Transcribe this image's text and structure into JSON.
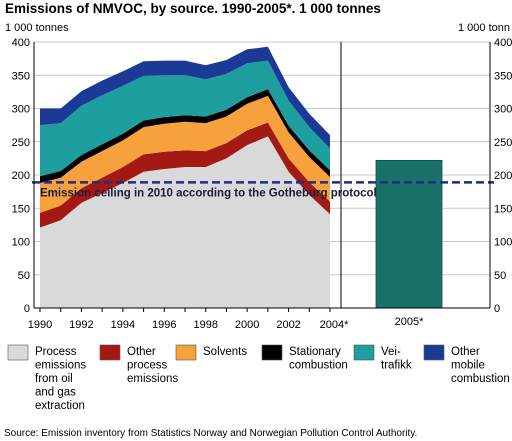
{
  "title": "Emissions of NMVOC, by source. 1990-2005*. 1 000 tonnes",
  "source": "Source: Emission inventory from Statistics Norway and Norwegian Pollution Control Authority.",
  "chart_data": {
    "type": "area",
    "title": "Emissions of NMVOC, by source. 1990-2005*. 1 000 tonnes",
    "ylabel_left": "1 000 tonnes",
    "ylabel_right": "1 000 tonn",
    "ylim": [
      0,
      400
    ],
    "yticks": [
      0,
      50,
      100,
      150,
      200,
      250,
      300,
      350,
      400
    ],
    "grid": true,
    "x": [
      1990,
      1991,
      1992,
      1993,
      1994,
      1995,
      1996,
      1997,
      1998,
      1999,
      2000,
      2001,
      2002,
      2003,
      2004
    ],
    "xtick_labels": [
      "1990",
      "1992",
      "1994",
      "1996",
      "1998",
      "2000",
      "2002",
      "2004*"
    ],
    "series": [
      {
        "name": "Process emissions from oil and gas extraction",
        "color": "#d9d9d9",
        "values": [
          121,
          132,
          158,
          173,
          188,
          205,
          209,
          212,
          212,
          225,
          245,
          258,
          205,
          170,
          141
        ]
      },
      {
        "name": "Other process emissions",
        "color": "#a31a14",
        "values": [
          22,
          22,
          22,
          23,
          24,
          26,
          26,
          25,
          24,
          23,
          22,
          21,
          20,
          19,
          19
        ]
      },
      {
        "name": "Solvents",
        "color": "#f7a13c",
        "values": [
          45,
          42,
          40,
          40,
          40,
          41,
          42,
          43,
          42,
          40,
          40,
          40,
          39,
          38,
          37
        ]
      },
      {
        "name": "Stationary combustion",
        "color": "#000000",
        "values": [
          10,
          10,
          10,
          10,
          10,
          10,
          10,
          10,
          10,
          10,
          10,
          10,
          10,
          10,
          10
        ]
      },
      {
        "name": "Vei-\ntrafikk",
        "color": "#1e9e9e",
        "values": [
          77,
          72,
          74,
          74,
          72,
          67,
          63,
          60,
          56,
          54,
          51,
          43,
          38,
          35,
          33
        ]
      },
      {
        "name": "Other\nmobile\ncombustion",
        "color": "#1a3a96",
        "values": [
          25,
          22,
          22,
          22,
          22,
          22,
          22,
          22,
          21,
          21,
          21,
          21,
          20,
          20,
          20
        ]
      }
    ],
    "bar": {
      "category": "2005*",
      "value": 222,
      "color": "#1a7168"
    },
    "reference_line": {
      "value": 189,
      "label": "Emission ceiling in 2010 according to the Gotheburg protocol",
      "color": "#1a2e8a",
      "style": "dashed"
    }
  }
}
